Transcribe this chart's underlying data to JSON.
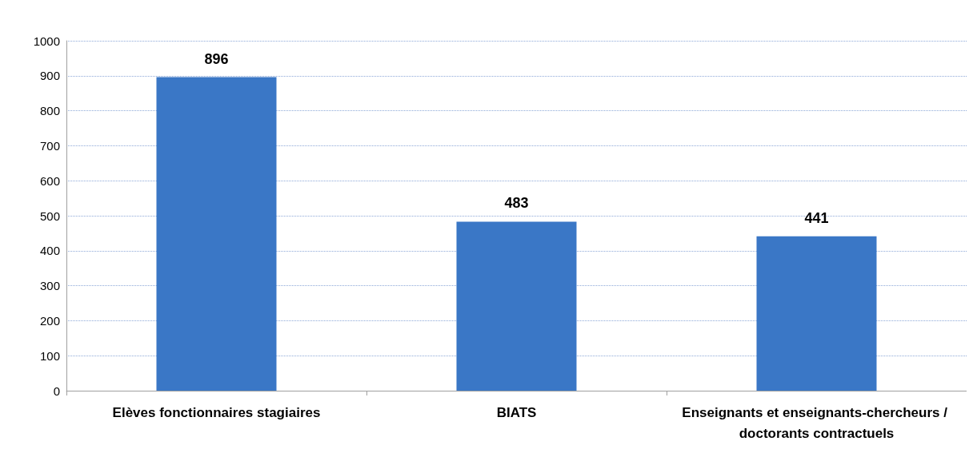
{
  "chart_data": {
    "type": "bar",
    "categories": [
      "Elèves fonctionnaires stagiaires",
      "BIATS",
      "Enseignants et enseignants-chercheurs / doctorants contractuels"
    ],
    "values": [
      896,
      483,
      441
    ],
    "color": "#3a77c6",
    "ylim": [
      0,
      1000
    ],
    "yticks": [
      0,
      100,
      200,
      300,
      400,
      500,
      600,
      700,
      800,
      900,
      1000
    ],
    "grid": "y",
    "data_labels": true
  }
}
